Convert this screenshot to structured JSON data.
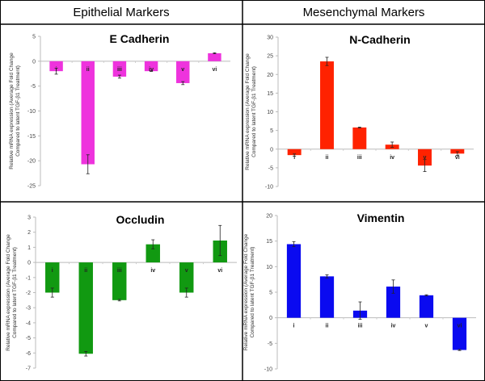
{
  "headers": {
    "left": "Epithelial Markers",
    "right": "Mesenchymal Markers"
  },
  "chart_data": [
    {
      "type": "bar",
      "title": "E Cadherin",
      "ylabel": [
        "Relative mRNA expression (Average Fold Change",
        "Compared to latent TGF-β1 Treatment)"
      ],
      "categories": [
        "i",
        "ii",
        "iii",
        "iv",
        "v",
        "vi"
      ],
      "values": [
        -2.0,
        -20.7,
        -3.1,
        -2.0,
        -4.4,
        1.6
      ],
      "errors": [
        0.6,
        1.9,
        0.3,
        0.05,
        0.3,
        0.1
      ],
      "ylim": [
        -25,
        5
      ],
      "yticks": [
        5,
        0,
        -5,
        -10,
        -15,
        -20,
        -25
      ],
      "color": "#ee33dd"
    },
    {
      "type": "bar",
      "title": "N-Cadherin",
      "ylabel": [
        "Relative mRNA expression (Average Fold Change",
        "Compared to latent TGF-β1 Treatment)"
      ],
      "categories": [
        "i",
        "ii",
        "iii",
        "iv",
        "v",
        "vi"
      ],
      "values": [
        -1.6,
        23.5,
        5.8,
        1.2,
        -4.4,
        -1.2
      ],
      "errors": [
        0.3,
        1.1,
        0.1,
        0.7,
        1.6,
        0.5
      ],
      "ylim": [
        -10,
        30
      ],
      "yticks": [
        30,
        25,
        20,
        15,
        10,
        5,
        0,
        -5,
        -10
      ],
      "color": "#ff2200"
    },
    {
      "type": "bar",
      "title": "Occludin",
      "ylabel": [
        "Relative mRNA expression (Average Fold Change",
        "Compared to latent TGF-β1 Treatment)"
      ],
      "categories": [
        "i",
        "ii",
        "iii",
        "iv",
        "v",
        "vi"
      ],
      "values": [
        -2.0,
        -6.05,
        -2.5,
        1.2,
        -2.0,
        1.45
      ],
      "errors": [
        0.3,
        0.15,
        0.05,
        0.3,
        0.3,
        1.0
      ],
      "ylim": [
        -7,
        3
      ],
      "yticks": [
        3,
        2,
        1,
        0,
        -1,
        -2,
        -3,
        -4,
        -5,
        -6,
        -7
      ],
      "color": "#119911"
    },
    {
      "type": "bar",
      "title": "Vimentin",
      "ylabel": [
        "Relative mRNA expression (Average Fold Change",
        "Compared to latent TGF-β1 Treatment)"
      ],
      "categories": [
        "i",
        "ii",
        "iii",
        "iv",
        "v",
        "vi"
      ],
      "values": [
        14.4,
        8.1,
        1.4,
        6.1,
        4.4,
        -6.3
      ],
      "errors": [
        0.5,
        0.3,
        1.7,
        1.3,
        0.1,
        0.1
      ],
      "ylim": [
        -10,
        20
      ],
      "yticks": [
        20,
        15,
        10,
        5,
        0,
        -5,
        -10
      ],
      "color": "#0a0af0"
    }
  ]
}
